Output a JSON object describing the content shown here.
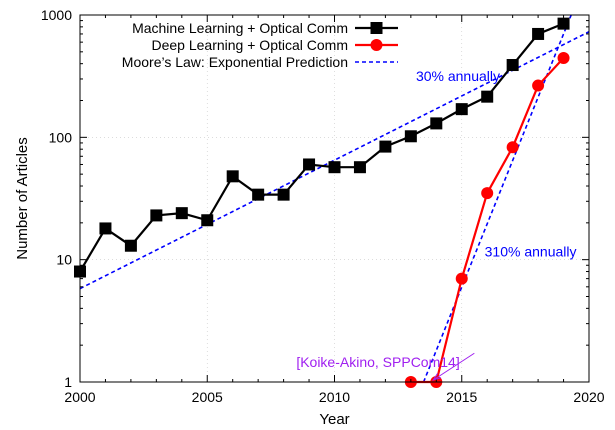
{
  "chart_data": {
    "type": "line",
    "xlabel": "Year",
    "ylabel": "Number of Articles",
    "xlim": [
      2000,
      2020
    ],
    "ylim": [
      1,
      1000
    ],
    "yscale": "log",
    "grid": true,
    "legend_position": "top-left",
    "x_ticks": [
      2000,
      2005,
      2010,
      2015,
      2020
    ],
    "y_ticks": [
      1,
      10,
      100,
      1000
    ],
    "series": [
      {
        "name": "Machine Learning + Optical Comm",
        "color": "#000000",
        "marker": "square",
        "style": "solid",
        "x": [
          2000,
          2001,
          2002,
          2003,
          2004,
          2005,
          2006,
          2007,
          2008,
          2009,
          2010,
          2011,
          2012,
          2013,
          2014,
          2015,
          2016,
          2017,
          2018,
          2019
        ],
        "y": [
          8,
          18,
          13,
          23,
          24,
          21,
          48,
          34,
          34,
          60,
          57,
          57,
          84,
          102,
          130,
          170,
          215,
          390,
          700,
          850
        ]
      },
      {
        "name": "Deep Learning + Optical Comm",
        "color": "#ff0000",
        "marker": "circle",
        "style": "solid",
        "x": [
          2013,
          2014,
          2015,
          2016,
          2017,
          2018,
          2019
        ],
        "y": [
          1,
          1,
          7,
          35,
          83,
          265,
          445
        ]
      },
      {
        "name": "Moore’s Law: Exponential Prediction",
        "color": "#0000ff",
        "style": "dashed",
        "x": [
          2000,
          2020
        ],
        "y": [
          5.8,
          730
        ]
      },
      {
        "name": "",
        "color": "#0000ff",
        "style": "dashed",
        "legend": false,
        "x": [
          2013.5,
          2019.3
        ],
        "y": [
          1,
          1000
        ]
      }
    ],
    "annotations": [
      {
        "text": "30% annually",
        "x": 2013.2,
        "y": 290,
        "color": "#0000ff"
      },
      {
        "text": "310% annually",
        "x": 2015.9,
        "y": 10.6,
        "color": "#0000ff"
      },
      {
        "text": "[Koike-Akino, SPPCom14]",
        "x": 2008.5,
        "y": 1.32,
        "color": "#a020f0",
        "arrow_to": [
          2014,
          1
        ]
      }
    ]
  }
}
